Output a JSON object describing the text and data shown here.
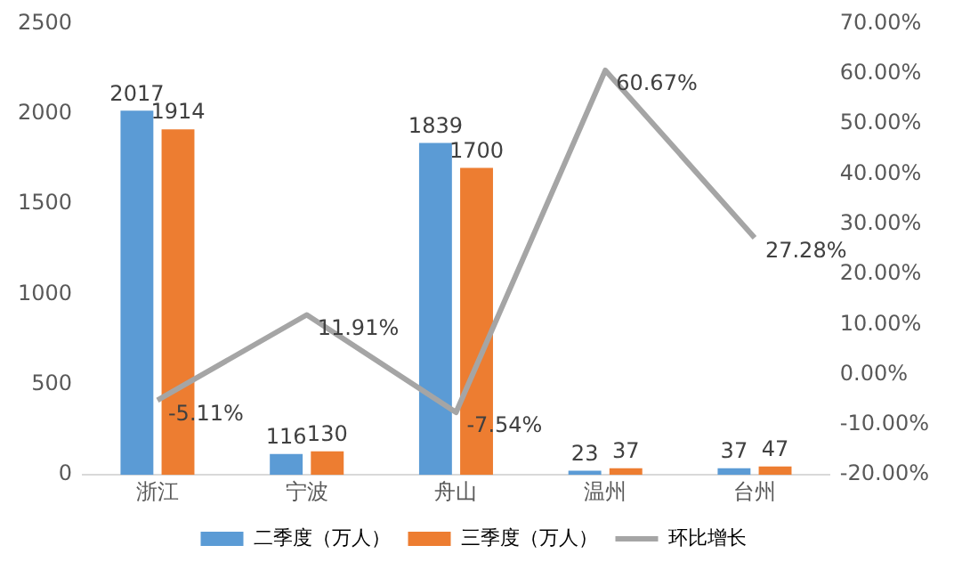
{
  "chart_data": {
    "type": "bar",
    "categories": [
      "浙江",
      "宁波",
      "舟山",
      "温州",
      "台州"
    ],
    "series": [
      {
        "name": "二季度（万人）",
        "color": "#5b9bd5",
        "values": [
          2017,
          116,
          1839,
          23,
          37
        ],
        "value_labels": [
          "2017",
          "116",
          "1839",
          "23",
          "37"
        ]
      },
      {
        "name": "三季度（万人）",
        "color": "#ed7d31",
        "values": [
          1914,
          130,
          1700,
          37,
          47
        ],
        "value_labels": [
          "1914",
          "130",
          "1700",
          "37",
          "47"
        ]
      },
      {
        "name": "环比增长",
        "type": "line",
        "axis": "y2",
        "color": "#a5a5a5",
        "values": [
          -5.11,
          11.91,
          -7.54,
          60.67,
          27.28
        ],
        "value_labels": [
          "-5.11%",
          "11.91%",
          "-7.54%",
          "60.67%",
          "27.28%"
        ]
      }
    ],
    "ylim": [
      0,
      2500
    ],
    "yticks": [
      0,
      500,
      1000,
      1500,
      2000,
      2500
    ],
    "y2lim": [
      -20,
      70
    ],
    "y2ticks": [
      {
        "value": -20,
        "label": "-20.00%"
      },
      {
        "value": -10,
        "label": "-10.00%"
      },
      {
        "value": 0,
        "label": "0.00%"
      },
      {
        "value": 10,
        "label": "10.00%"
      },
      {
        "value": 20,
        "label": "20.00%"
      },
      {
        "value": 30,
        "label": "30.00%"
      },
      {
        "value": 40,
        "label": "40.00%"
      },
      {
        "value": 50,
        "label": "50.00%"
      },
      {
        "value": 60,
        "label": "60.00%"
      },
      {
        "value": 70,
        "label": "70.00%"
      }
    ],
    "legend": "bottom",
    "marker": "none"
  }
}
